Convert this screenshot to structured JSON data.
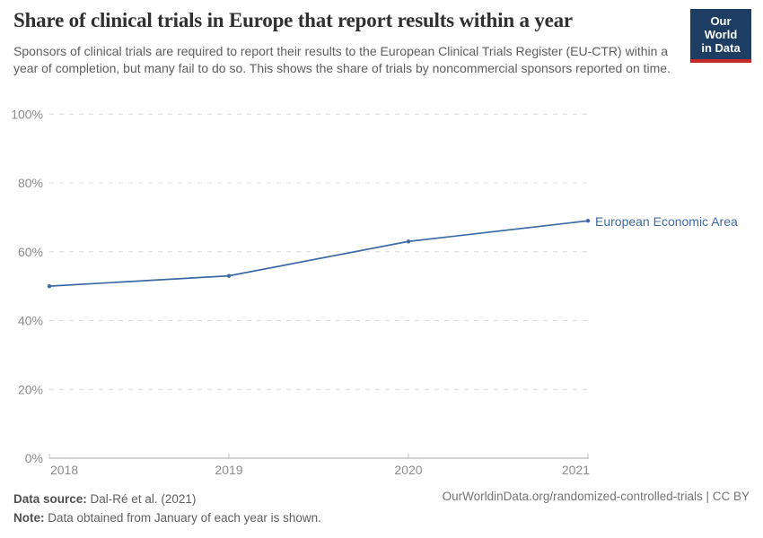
{
  "header": {
    "title": "Share of clinical trials in Europe that report results within a year",
    "subtitle": "Sponsors of clinical trials are required to report their results to the European Clinical Trials Register (EU-CTR) within a year of completion, but many fail to do so. This shows the share of trials by noncommercial sponsors reported on time.",
    "logo": {
      "line1": "Our World",
      "line2": "in Data",
      "bg_color": "#1d3d63",
      "accent_color": "#c5292a"
    }
  },
  "chart_data": {
    "type": "line",
    "title": "Share of clinical trials in Europe that report results within a year",
    "xlabel": "",
    "ylabel": "",
    "x": [
      2018,
      2019,
      2020,
      2021
    ],
    "series": [
      {
        "name": "European Economic Area",
        "values": [
          50,
          53,
          63,
          69
        ],
        "color": "#3d6aa6"
      }
    ],
    "xlim": [
      2018,
      2021
    ],
    "ylim": [
      0,
      100
    ],
    "yticks": [
      0,
      20,
      40,
      60,
      80,
      100
    ],
    "ytick_suffix": "%",
    "xticks": [
      2018,
      2019,
      2020,
      2021
    ],
    "grid": "horizontal-dashed",
    "legend": "end-of-line-label"
  },
  "colors": {
    "line": "#3d6aa6",
    "grid": "#dcdcdc",
    "axis": "#a5a5a5",
    "axis_tick": "#c2c2c2",
    "tick_label": "#8b8b8b"
  },
  "footer": {
    "source_label": "Data source:",
    "source_text": "Dal-Ré et al. (2021)",
    "note_label": "Note:",
    "note_text": "Data obtained from January of each year is shown.",
    "url_text": "OurWorldinData.org/randomized-controlled-trials | CC BY"
  }
}
